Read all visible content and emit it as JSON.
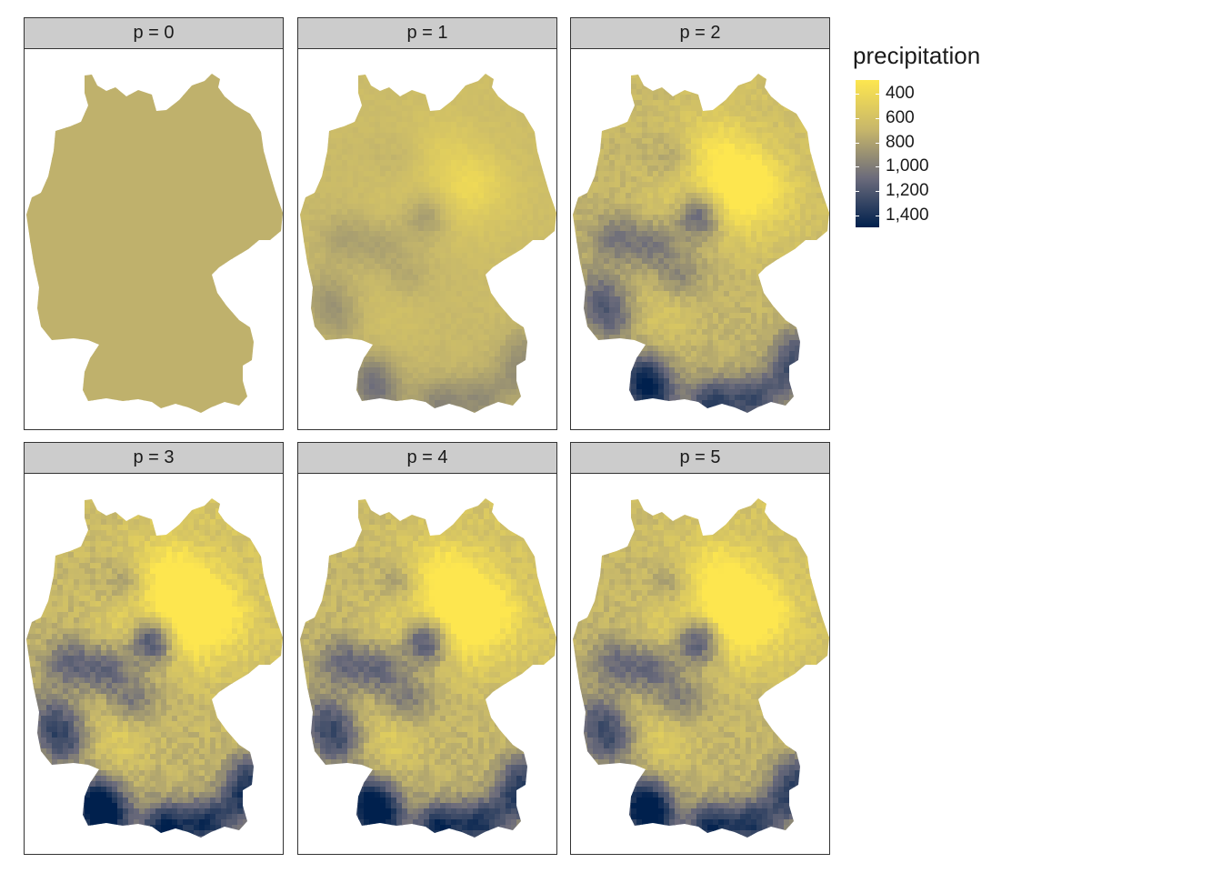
{
  "panels": [
    {
      "label": "p = 0",
      "variant": 0
    },
    {
      "label": "p = 1",
      "variant": 1
    },
    {
      "label": "p = 2",
      "variant": 2
    },
    {
      "label": "p = 3",
      "variant": 3
    },
    {
      "label": "p = 4",
      "variant": 4
    },
    {
      "label": "p = 5",
      "variant": 5
    }
  ],
  "legend": {
    "title": "precipitation",
    "labels": [
      "400",
      "600",
      "800",
      "1,000",
      "1,200",
      "1,400"
    ],
    "colors": {
      "low": "#fde64f",
      "mid": "#c8b76a",
      "high": "#00204d"
    }
  }
}
